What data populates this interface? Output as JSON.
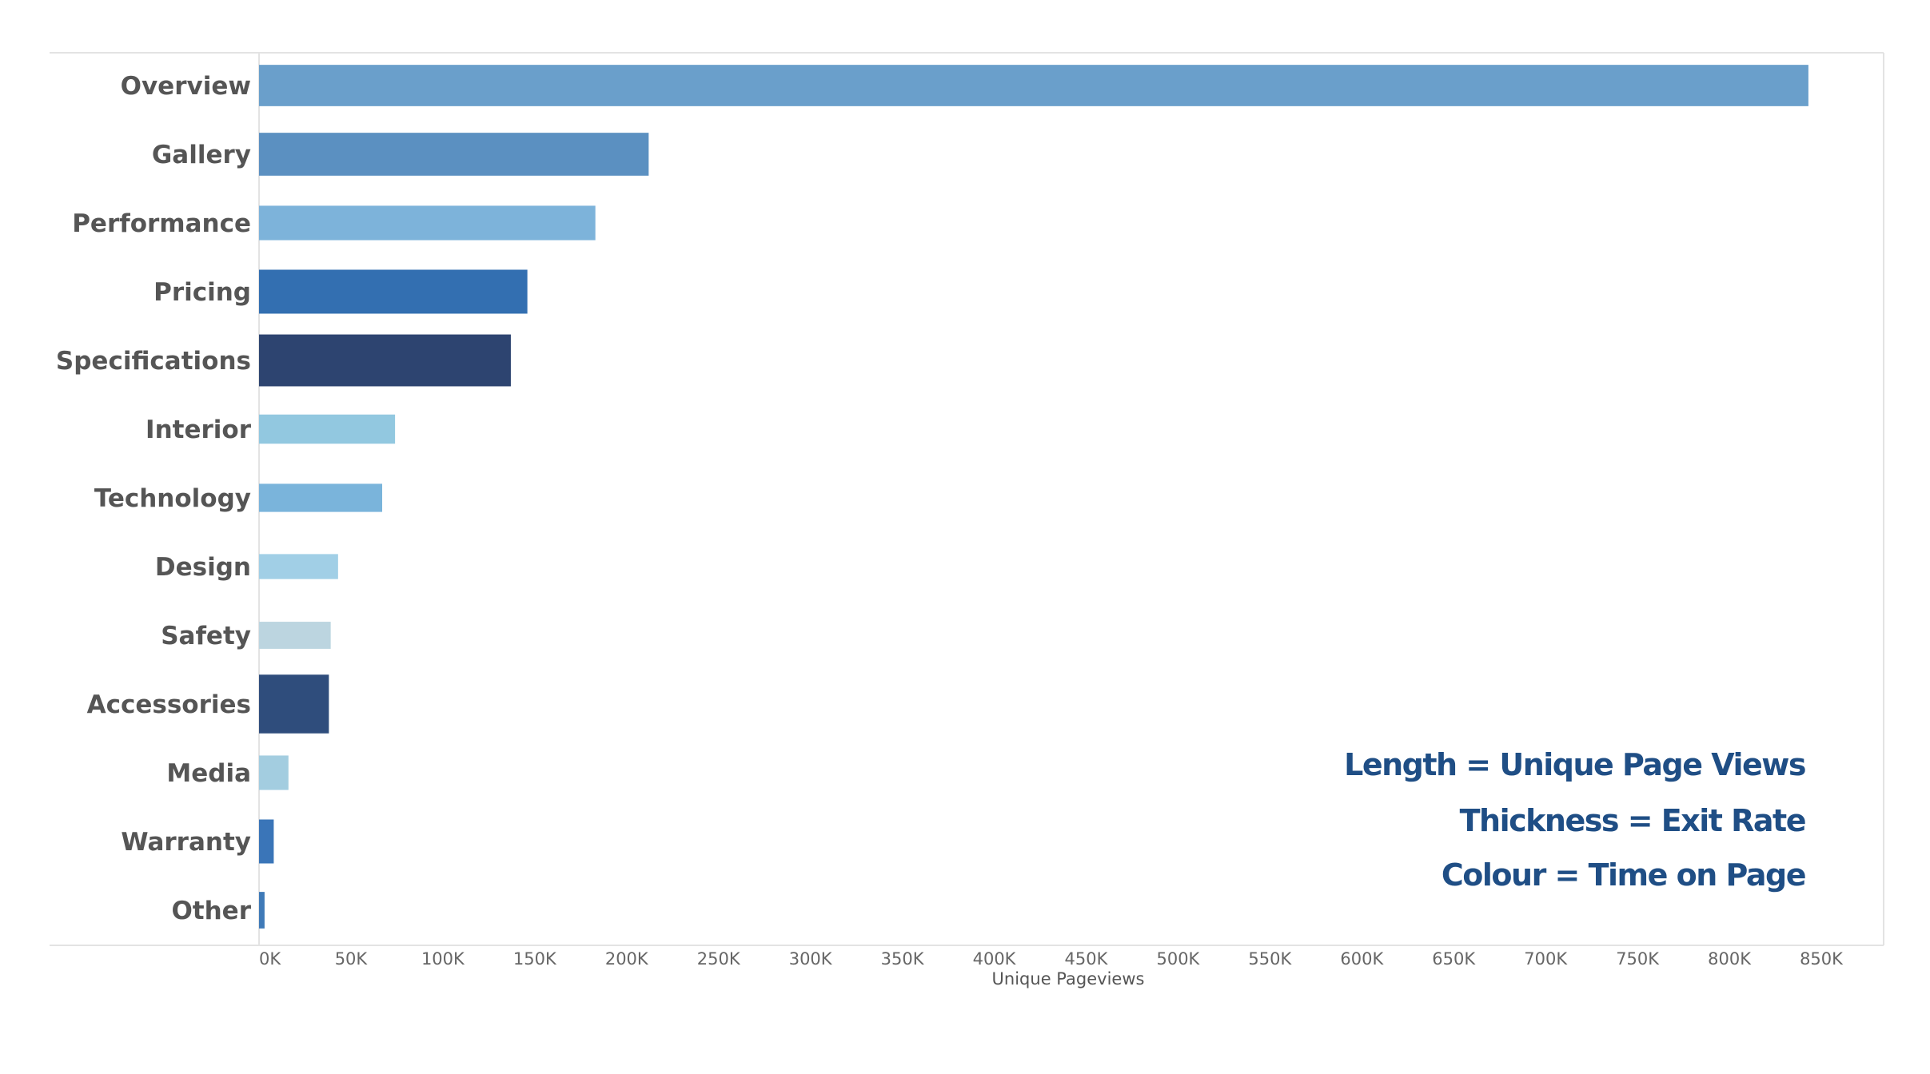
{
  "chart_data": {
    "type": "bar",
    "orientation": "horizontal",
    "categories": [
      "Overview",
      "Gallery",
      "Performance",
      "Pricing",
      "Specifications",
      "Interior",
      "Technology",
      "Design",
      "Safety",
      "Accessories",
      "Media",
      "Warranty",
      "Other"
    ],
    "values": [
      843000,
      212000,
      183000,
      146000,
      137000,
      74000,
      67000,
      43000,
      39000,
      38000,
      16000,
      8000,
      3000
    ],
    "exit_rate_relative": [
      0.45,
      0.48,
      0.32,
      0.5,
      0.65,
      0.22,
      0.2,
      0.14,
      0.18,
      0.78,
      0.32,
      0.5,
      0.36
    ],
    "colors": [
      "#6a9fcb",
      "#5b90c1",
      "#7db3da",
      "#336fb1",
      "#2d4470",
      "#92c8e0",
      "#7ab4db",
      "#a1cfe6",
      "#bcd5e0",
      "#2f4d7c",
      "#a3cde0",
      "#3a75b8",
      "#3f7ab8"
    ],
    "xlabel": "Unique Pageviews",
    "ylabel": "",
    "xlim": [
      0,
      850000
    ],
    "xticks": [
      0,
      50000,
      100000,
      150000,
      200000,
      250000,
      300000,
      350000,
      400000,
      450000,
      500000,
      550000,
      600000,
      650000,
      700000,
      750000,
      800000,
      850000
    ],
    "xtick_labels": [
      "0K",
      "50K",
      "100K",
      "150K",
      "200K",
      "250K",
      "300K",
      "350K",
      "400K",
      "450K",
      "500K",
      "550K",
      "600K",
      "650K",
      "700K",
      "750K",
      "800K",
      "850K"
    ],
    "grid": false,
    "annotations": [
      "Length = Unique Page Views",
      "Thickness = Exit Rate",
      "Colour = Time on Page"
    ],
    "annotation_color": "#1f4e85",
    "label_color": "#555555",
    "frame_color": "#e3e3e3"
  }
}
